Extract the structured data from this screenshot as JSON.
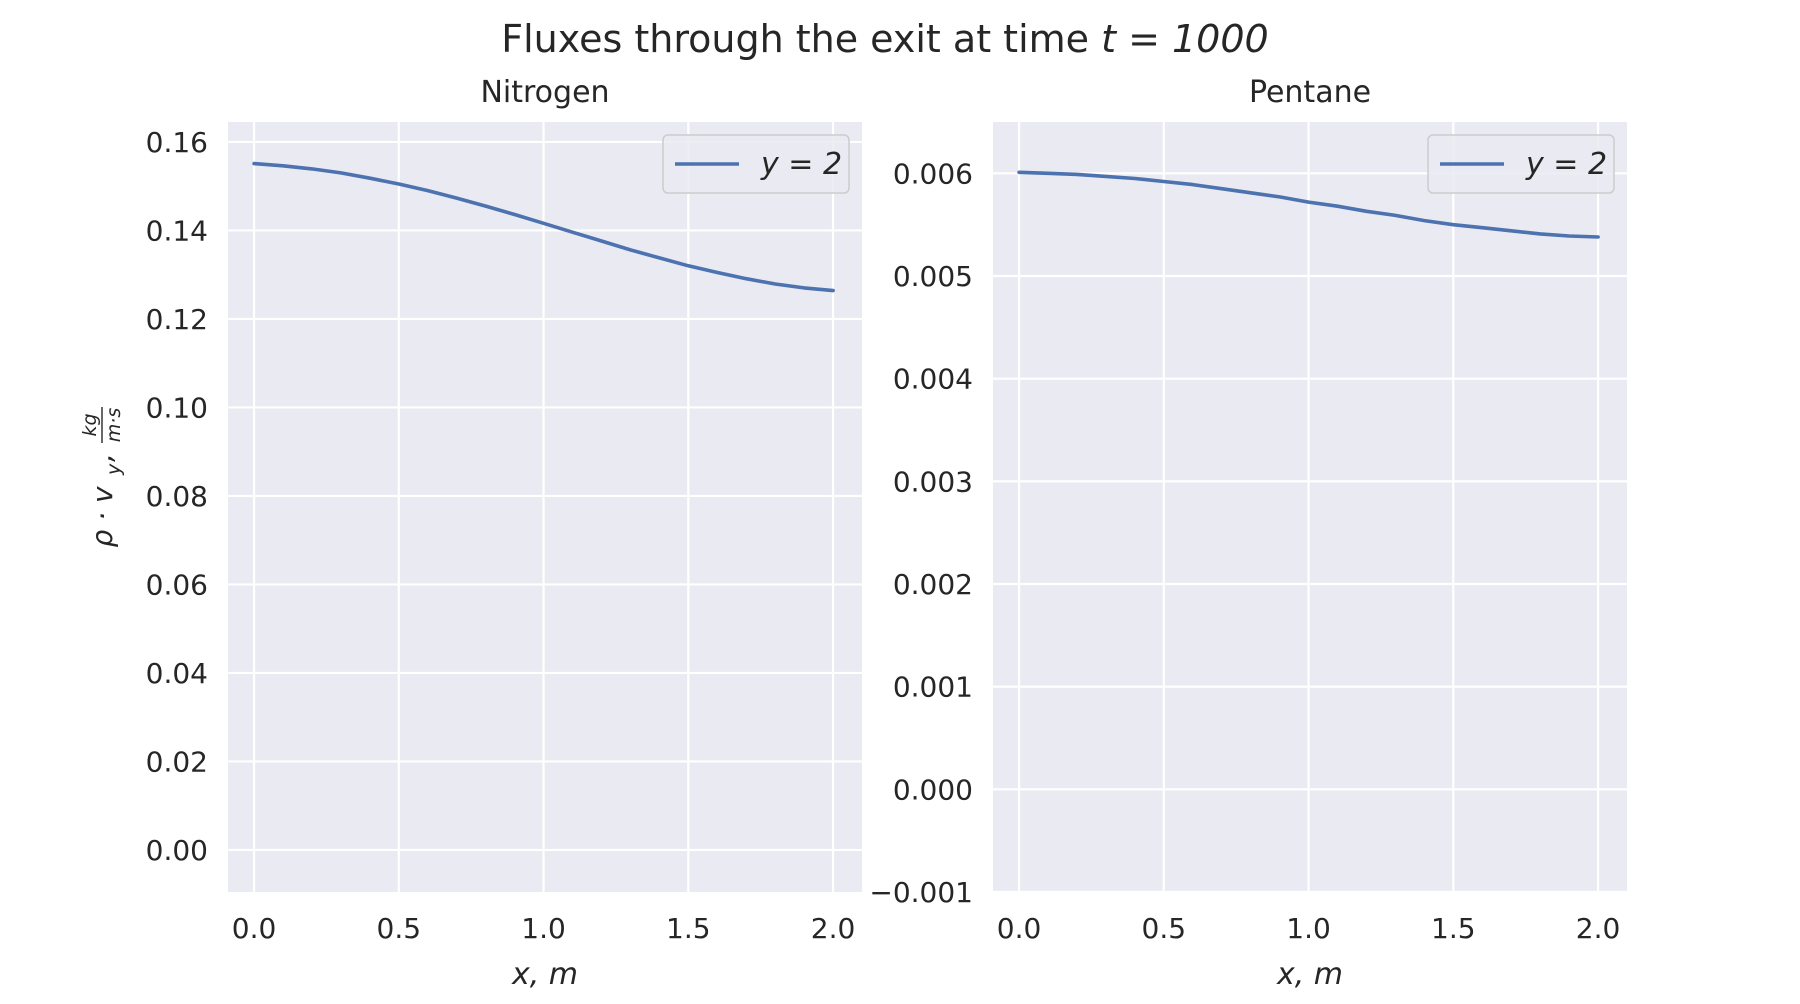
{
  "figure": {
    "suptitle_prefix": "Fluxes through the exit at time ",
    "suptitle_math": "t = 1000"
  },
  "chart_data": [
    {
      "type": "line",
      "title": "Nitrogen",
      "xlabel": "x, m",
      "ylabel": {
        "main": "ρ · v",
        "subscript": "y",
        "sep": ",",
        "unit_num": "kg",
        "unit_den": "m·s"
      },
      "xlim": [
        -0.09,
        2.1
      ],
      "ylim": [
        -0.0095,
        0.1645
      ],
      "xticks": [
        0.0,
        0.5,
        1.0,
        1.5,
        2.0
      ],
      "xtick_labels": [
        "0.0",
        "0.5",
        "1.0",
        "1.5",
        "2.0"
      ],
      "yticks": [
        0.0,
        0.02,
        0.04,
        0.06,
        0.08,
        0.1,
        0.12,
        0.14,
        0.16
      ],
      "ytick_labels": [
        "0.00",
        "0.02",
        "0.04",
        "0.06",
        "0.08",
        "0.10",
        "0.12",
        "0.14",
        "0.16"
      ],
      "grid": true,
      "legend_position": "top-right",
      "series": [
        {
          "name": "y = 2",
          "color": "#4c72b0",
          "x": [
            0.0,
            0.1,
            0.2,
            0.3,
            0.4,
            0.5,
            0.6,
            0.7,
            0.8,
            0.9,
            1.0,
            1.1,
            1.2,
            1.3,
            1.4,
            1.5,
            1.6,
            1.7,
            1.8,
            1.9,
            2.0
          ],
          "y": [
            0.1551,
            0.1546,
            0.1539,
            0.153,
            0.1518,
            0.1505,
            0.149,
            0.1473,
            0.1455,
            0.1436,
            0.1416,
            0.1396,
            0.1376,
            0.1356,
            0.1338,
            0.132,
            0.1305,
            0.1291,
            0.1279,
            0.127,
            0.1264
          ]
        }
      ]
    },
    {
      "type": "line",
      "title": "Pentane",
      "xlabel": "x, m",
      "xlim": [
        -0.09,
        2.1
      ],
      "ylim": [
        -0.001,
        0.0065
      ],
      "xticks": [
        0.0,
        0.5,
        1.0,
        1.5,
        2.0
      ],
      "xtick_labels": [
        "0.0",
        "0.5",
        "1.0",
        "1.5",
        "2.0"
      ],
      "yticks": [
        -0.001,
        0.0,
        0.001,
        0.002,
        0.003,
        0.004,
        0.005,
        0.006
      ],
      "ytick_labels": [
        "−0.001",
        "0.000",
        "0.001",
        "0.002",
        "0.003",
        "0.004",
        "0.005",
        "0.006"
      ],
      "grid": true,
      "legend_position": "top-right",
      "series": [
        {
          "name": "y = 2",
          "color": "#4c72b0",
          "x": [
            0.0,
            0.1,
            0.2,
            0.3,
            0.4,
            0.5,
            0.6,
            0.7,
            0.8,
            0.9,
            1.0,
            1.1,
            1.2,
            1.3,
            1.4,
            1.5,
            1.6,
            1.7,
            1.8,
            1.9,
            2.0
          ],
          "y": [
            0.00601,
            0.006,
            0.00599,
            0.00597,
            0.00595,
            0.00592,
            0.00589,
            0.00585,
            0.00581,
            0.00577,
            0.00572,
            0.00568,
            0.00563,
            0.00559,
            0.00554,
            0.0055,
            0.00547,
            0.00544,
            0.00541,
            0.00539,
            0.00538
          ]
        }
      ]
    }
  ],
  "colors": {
    "axes_bg": "#eaeaf2",
    "grid": "#ffffff",
    "text": "#262626"
  }
}
